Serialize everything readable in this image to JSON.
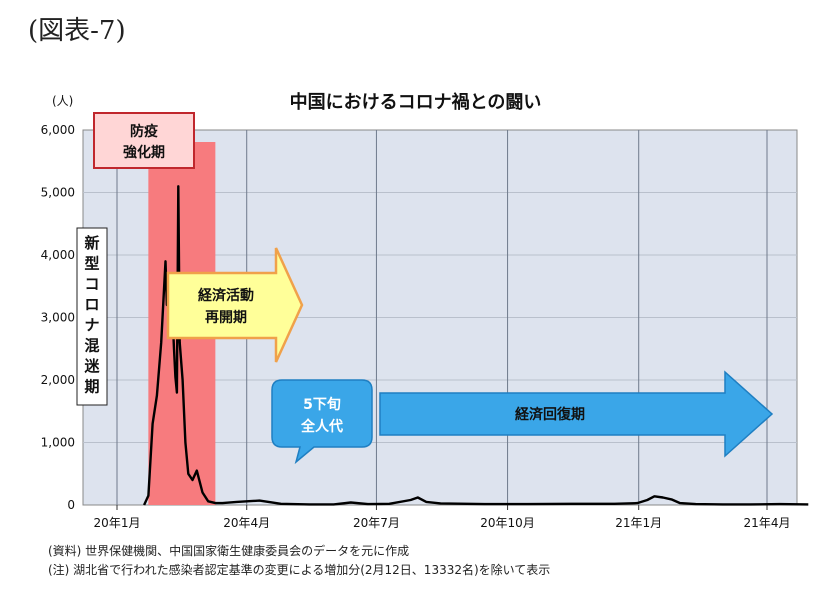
{
  "figure_label": "(図表-7)",
  "chart_data": {
    "type": "line",
    "title": "中国におけるコロナ禍との闘い",
    "y_unit": "(人)",
    "ylim": [
      0,
      6000
    ],
    "yticks": [
      "0",
      "1,000",
      "2,000",
      "3,000",
      "4,000",
      "5,000",
      "6,000"
    ],
    "x_ticks": [
      "20年1月",
      "20年4月",
      "20年7月",
      "20年10月",
      "21年1月",
      "21年4月"
    ],
    "grid": true,
    "series": [
      {
        "x": [
          "2020-01-20",
          "2020-01-23",
          "2020-01-26",
          "2020-01-29",
          "2020-02-01",
          "2020-02-04",
          "2020-02-05",
          "2020-02-07",
          "2020-02-08",
          "2020-02-09",
          "2020-02-10",
          "2020-02-11",
          "2020-02-12",
          "2020-02-13",
          "2020-02-14",
          "2020-02-16",
          "2020-02-18",
          "2020-02-20",
          "2020-02-23",
          "2020-02-26",
          "2020-03-01",
          "2020-03-05",
          "2020-03-10",
          "2020-03-15",
          "2020-03-25",
          "2020-04-10",
          "2020-04-25",
          "2020-05-15",
          "2020-06-01",
          "2020-06-13",
          "2020-06-25",
          "2020-07-10",
          "2020-07-25",
          "2020-07-30",
          "2020-08-05",
          "2020-08-15",
          "2020-09-15",
          "2020-10-15",
          "2020-11-15",
          "2020-12-15",
          "2020-12-31",
          "2021-01-07",
          "2021-01-12",
          "2021-01-18",
          "2021-01-24",
          "2021-01-30",
          "2021-02-10",
          "2021-03-01",
          "2021-03-20",
          "2021-04-10",
          "2021-04-30"
        ],
        "values": [
          0,
          150,
          1300,
          1750,
          2600,
          3900,
          3200,
          3400,
          2800,
          3000,
          2500,
          2050,
          1800,
          5100,
          2600,
          2000,
          1000,
          500,
          400,
          550,
          200,
          60,
          30,
          30,
          50,
          70,
          20,
          10,
          10,
          40,
          15,
          20,
          80,
          120,
          50,
          25,
          15,
          15,
          20,
          20,
          30,
          80,
          140,
          120,
          90,
          30,
          15,
          10,
          10,
          15,
          10
        ]
      }
    ],
    "annotations": [
      {
        "lines": [
          "防疫",
          "強化期"
        ]
      },
      {
        "text": "新型コロナ混迷期"
      },
      {
        "lines": [
          "経済活動",
          "再開期"
        ]
      },
      {
        "lines": [
          "5下旬",
          "全人代"
        ]
      },
      {
        "text": "経済回復期"
      }
    ]
  },
  "notes": [
    "(資料) 世界保健機関、中国国家衛生健康委員会のデータを元に作成",
    "(注) 湖北省で行われた感染者認定基準の変更による増加分(2月12日、13332名)を除いて表示"
  ]
}
